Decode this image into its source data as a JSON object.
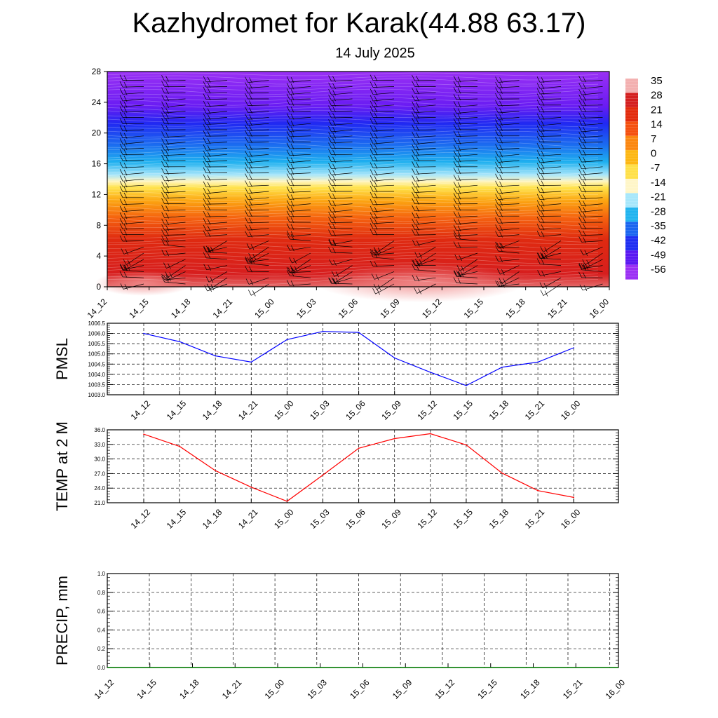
{
  "title": "Kazhydromet for Karak(44.88 63.17)",
  "subtitle": "14 July 2025",
  "time_labels": [
    "14_12",
    "14_15",
    "14_18",
    "14_21",
    "15_00",
    "15_03",
    "15_06",
    "15_09",
    "15_12",
    "15_15",
    "15_18",
    "15_21",
    "16_00"
  ],
  "chart_data": [
    {
      "type": "heatmap",
      "title": "",
      "ylabel": "",
      "ylim": [
        0,
        28
      ],
      "yticks": [
        "0",
        "4",
        "8",
        "12",
        "16",
        "20",
        "24",
        "28"
      ],
      "colorbar": {
        "labels": [
          "35",
          "28",
          "21",
          "14",
          "7",
          "0",
          "-7",
          "-14",
          "-21",
          "-28",
          "-35",
          "-42",
          "-49",
          "-56"
        ],
        "colors": [
          "#f3b0b0",
          "#d42020",
          "#e32b0c",
          "#f5500f",
          "#fb8710",
          "#fdb713",
          "#ffe048",
          "#fff6c8",
          "#a7e7fb",
          "#21b4ef",
          "#1b66f0",
          "#1e2ef2",
          "#5a18f2",
          "#9b30f4"
        ]
      },
      "levels": [
        0,
        4,
        8,
        12,
        14,
        16,
        20,
        24,
        28
      ],
      "temperature_by_level": [
        33,
        28,
        18,
        5,
        -14,
        -30,
        -48,
        -60,
        -62
      ]
    },
    {
      "type": "line",
      "ylabel": "PMSL",
      "ylim": [
        1003.0,
        1006.5
      ],
      "yticks": [
        "1003.0",
        "1003.5",
        "1004.0",
        "1004.5",
        "1005.0",
        "1005.5",
        "1006.0",
        "1006.5"
      ],
      "color": "#0000ff",
      "values": [
        1006.0,
        1005.6,
        1004.9,
        1004.6,
        1005.7,
        1006.1,
        1006.05,
        1004.8,
        1004.1,
        1003.45,
        1004.35,
        1004.6,
        1005.3
      ]
    },
    {
      "type": "line",
      "ylabel": "TEMP at 2 M",
      "ylim": [
        21.0,
        36.0
      ],
      "yticks": [
        "21.0",
        "24.0",
        "27.0",
        "30.0",
        "33.0",
        "36.0"
      ],
      "color": "#ff0000",
      "values": [
        35.1,
        32.6,
        27.6,
        24.2,
        21.3,
        26.7,
        32.2,
        34.2,
        35.2,
        32.9,
        27.1,
        23.5,
        22.1
      ]
    },
    {
      "type": "line",
      "ylabel": "PRECIP, mm",
      "ylim": [
        0.0,
        1.0
      ],
      "yticks": [
        "0.0",
        "0.2",
        "0.4",
        "0.6",
        "0.8",
        "1.0"
      ],
      "color": "#008000",
      "values": [
        0,
        0,
        0,
        0,
        0,
        0,
        0,
        0,
        0,
        0,
        0,
        0,
        0
      ]
    }
  ]
}
